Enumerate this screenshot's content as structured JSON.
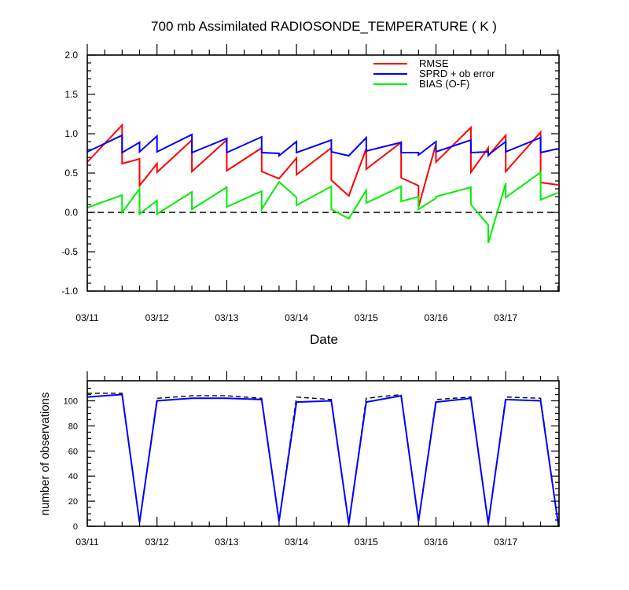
{
  "chart_data": [
    {
      "type": "line",
      "title": "700 mb Assimilated RADIOSONDE_TEMPERATURE ( K )",
      "xlabel": "Date",
      "ylabel": "",
      "x_tick_labels": [
        "03/11",
        "03/12",
        "03/13",
        "03/14",
        "03/15",
        "03/16",
        "03/17"
      ],
      "y_tick_labels": [
        "-1.0",
        "-0.5",
        "0.0",
        "0.5",
        "1.0",
        "1.5",
        "2.0"
      ],
      "x_range_days": [
        0,
        6.75
      ],
      "ylim": [
        -1.0,
        2.0
      ],
      "zero_line": "dashed",
      "legend_position": "top-right",
      "series": [
        {
          "name": "RMSE",
          "color": "#ff0000",
          "points": [
            [
              0,
              0.64
            ],
            [
              0.5,
              1.11
            ],
            [
              0.5,
              0.62
            ],
            [
              0.75,
              0.68
            ],
            [
              0.75,
              0.34
            ],
            [
              1.0,
              0.62
            ],
            [
              1.0,
              0.51
            ],
            [
              1.5,
              0.92
            ],
            [
              1.5,
              0.52
            ],
            [
              2.0,
              0.92
            ],
            [
              2.0,
              0.53
            ],
            [
              2.5,
              0.82
            ],
            [
              2.5,
              0.52
            ],
            [
              2.75,
              0.43
            ],
            [
              3.0,
              0.69
            ],
            [
              3.0,
              0.48
            ],
            [
              3.5,
              0.82
            ],
            [
              3.5,
              0.41
            ],
            [
              3.75,
              0.21
            ],
            [
              4.0,
              0.81
            ],
            [
              4.0,
              0.55
            ],
            [
              4.5,
              0.89
            ],
            [
              4.5,
              0.44
            ],
            [
              4.75,
              0.34
            ],
            [
              4.75,
              0.07
            ],
            [
              5.0,
              0.87
            ],
            [
              5.0,
              0.64
            ],
            [
              5.5,
              1.08
            ],
            [
              5.5,
              0.51
            ],
            [
              5.75,
              0.82
            ],
            [
              5.75,
              0.72
            ],
            [
              6.0,
              0.98
            ],
            [
              6.0,
              0.52
            ],
            [
              6.5,
              1.02
            ],
            [
              6.5,
              0.38
            ],
            [
              6.75,
              0.35
            ]
          ]
        },
        {
          "name": "SPRD + ob error",
          "color": "#0000ff",
          "points": [
            [
              0,
              0.77
            ],
            [
              0.5,
              0.98
            ],
            [
              0.5,
              0.76
            ],
            [
              0.75,
              0.89
            ],
            [
              0.75,
              0.77
            ],
            [
              1.0,
              0.97
            ],
            [
              1.0,
              0.77
            ],
            [
              1.5,
              0.99
            ],
            [
              1.5,
              0.76
            ],
            [
              2.0,
              0.94
            ],
            [
              2.0,
              0.76
            ],
            [
              2.5,
              0.96
            ],
            [
              2.5,
              0.76
            ],
            [
              2.75,
              0.75
            ],
            [
              2.75,
              0.72
            ],
            [
              3.0,
              0.9
            ],
            [
              3.0,
              0.76
            ],
            [
              3.5,
              0.92
            ],
            [
              3.5,
              0.77
            ],
            [
              3.75,
              0.72
            ],
            [
              4.0,
              0.95
            ],
            [
              4.0,
              0.78
            ],
            [
              4.5,
              0.89
            ],
            [
              4.5,
              0.76
            ],
            [
              4.75,
              0.76
            ],
            [
              4.75,
              0.73
            ],
            [
              5.0,
              0.9
            ],
            [
              5.0,
              0.77
            ],
            [
              5.5,
              0.92
            ],
            [
              5.5,
              0.76
            ],
            [
              5.75,
              0.77
            ],
            [
              5.75,
              0.73
            ],
            [
              6.0,
              0.9
            ],
            [
              6.0,
              0.77
            ],
            [
              6.5,
              0.95
            ],
            [
              6.5,
              0.76
            ],
            [
              6.75,
              0.81
            ]
          ]
        },
        {
          "name": "BIAS (O-F)",
          "color": "#00ee00",
          "points": [
            [
              0,
              0.06
            ],
            [
              0.5,
              0.22
            ],
            [
              0.5,
              0.0
            ],
            [
              0.75,
              0.3
            ],
            [
              0.75,
              -0.02
            ],
            [
              1.0,
              0.15
            ],
            [
              1.0,
              -0.02
            ],
            [
              1.5,
              0.26
            ],
            [
              1.5,
              0.04
            ],
            [
              2.0,
              0.32
            ],
            [
              2.0,
              0.07
            ],
            [
              2.5,
              0.27
            ],
            [
              2.5,
              0.04
            ],
            [
              2.75,
              0.39
            ],
            [
              3.0,
              0.19
            ],
            [
              3.0,
              0.09
            ],
            [
              3.5,
              0.33
            ],
            [
              3.5,
              0.04
            ],
            [
              3.75,
              -0.08
            ],
            [
              4.0,
              0.28
            ],
            [
              4.0,
              0.12
            ],
            [
              4.5,
              0.33
            ],
            [
              4.5,
              0.14
            ],
            [
              4.75,
              0.2
            ],
            [
              4.75,
              0.04
            ],
            [
              5.0,
              0.18
            ],
            [
              5.0,
              0.2
            ],
            [
              5.5,
              0.32
            ],
            [
              5.5,
              0.1
            ],
            [
              5.75,
              -0.16
            ],
            [
              5.75,
              -0.39
            ],
            [
              6.0,
              0.37
            ],
            [
              6.0,
              0.19
            ],
            [
              6.5,
              0.51
            ],
            [
              6.5,
              0.16
            ],
            [
              6.75,
              0.25
            ]
          ]
        }
      ]
    },
    {
      "type": "line",
      "title": "",
      "xlabel": "",
      "ylabel": "number of observations",
      "x_tick_labels": [
        "03/11",
        "03/12",
        "03/13",
        "03/14",
        "03/15",
        "03/16",
        "03/17"
      ],
      "y_tick_labels": [
        "0",
        "20",
        "40",
        "60",
        "80",
        "100"
      ],
      "x_range_days": [
        0,
        6.75
      ],
      "ylim": [
        0,
        116
      ],
      "series": [
        {
          "name": "",
          "color": "#0000ff",
          "style": "solid",
          "points": [
            [
              0,
              103
            ],
            [
              0.5,
              105
            ],
            [
              0.75,
              3
            ],
            [
              1.0,
              100
            ],
            [
              1.5,
              102
            ],
            [
              2.0,
              102
            ],
            [
              2.5,
              101
            ],
            [
              2.75,
              4
            ],
            [
              3.0,
              99
            ],
            [
              3.5,
              100
            ],
            [
              3.75,
              2
            ],
            [
              4.0,
              99
            ],
            [
              4.5,
              104
            ],
            [
              4.75,
              4
            ],
            [
              5.0,
              99
            ],
            [
              5.5,
              102
            ],
            [
              5.75,
              2
            ],
            [
              6.0,
              101
            ],
            [
              6.5,
              100
            ],
            [
              6.75,
              3
            ]
          ]
        },
        {
          "name": "",
          "color": "#000000",
          "style": "dashed",
          "points": [
            [
              0,
              106
            ],
            [
              0.5,
              106
            ],
            [
              0.75,
              3
            ],
            [
              1.0,
              102
            ],
            [
              1.5,
              104
            ],
            [
              2.0,
              104
            ],
            [
              2.5,
              102
            ],
            [
              2.75,
              4
            ],
            [
              3.0,
              103
            ],
            [
              3.5,
              101
            ],
            [
              3.75,
              2
            ],
            [
              4.0,
              102
            ],
            [
              4.5,
              105
            ],
            [
              4.75,
              4
            ],
            [
              5.0,
              101
            ],
            [
              5.5,
              103
            ],
            [
              5.75,
              2
            ],
            [
              6.0,
              103
            ],
            [
              6.5,
              102
            ],
            [
              6.75,
              3
            ]
          ]
        }
      ]
    }
  ]
}
